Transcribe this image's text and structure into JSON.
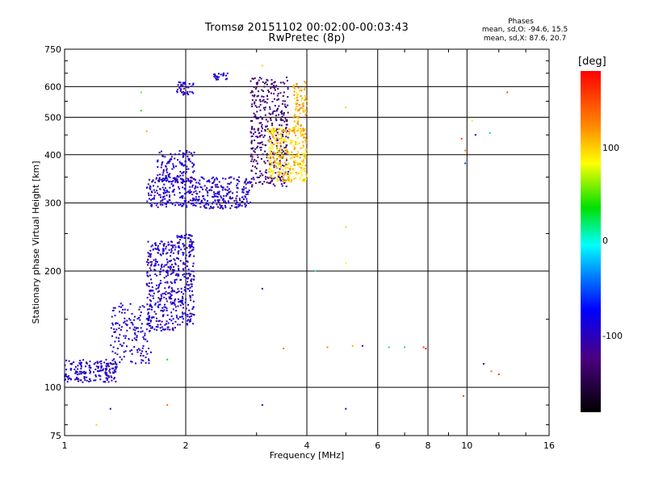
{
  "title_line1": "Tromsø 20151102 00:02:00-00:03:43",
  "title_line2": "RwPretec (8p)",
  "phases": {
    "heading": "Phases",
    "line_o": "mean, sd,O: -94.6, 15.5",
    "line_x": "mean, sd,X:  87.6, 20.7"
  },
  "colorbar": {
    "unit": "[deg]",
    "ticks": [
      "100",
      "0",
      "-100"
    ],
    "range": [
      -180,
      180
    ]
  },
  "chart_data": {
    "type": "scatter",
    "xlabel": "Frequency [MHz]",
    "ylabel": "Stationary phase Virtual Height [km]",
    "x_scale": "log",
    "y_scale": "log",
    "xlim": [
      1,
      16
    ],
    "ylim": [
      75,
      750
    ],
    "x_ticks": [
      "1",
      "2",
      "4",
      "6",
      "8",
      "10",
      "16"
    ],
    "y_ticks": [
      "75",
      "100",
      "200",
      "300",
      "400",
      "500",
      "600",
      "750"
    ],
    "grid": true,
    "color_by": "phase [deg]",
    "clusters": [
      {
        "freq": [
          1.0,
          1.35
        ],
        "height": [
          103,
          118
        ],
        "phase": -100,
        "count": 180
      },
      {
        "freq": [
          1.3,
          1.65
        ],
        "height": [
          115,
          165
        ],
        "phase": -100,
        "count": 160
      },
      {
        "freq": [
          1.6,
          1.9
        ],
        "height": [
          140,
          240
        ],
        "phase": -100,
        "count": 320
      },
      {
        "freq": [
          1.9,
          2.1
        ],
        "height": [
          145,
          250
        ],
        "phase": -100,
        "count": 200
      },
      {
        "freq": [
          1.6,
          2.9
        ],
        "height": [
          290,
          350
        ],
        "phase": -100,
        "count": 420
      },
      {
        "freq": [
          1.7,
          2.1
        ],
        "height": [
          340,
          410
        ],
        "phase": -100,
        "count": 120
      },
      {
        "freq": [
          2.9,
          3.6
        ],
        "height": [
          330,
          640
        ],
        "phase": -130,
        "count": 380
      },
      {
        "freq": [
          3.2,
          4.0
        ],
        "height": [
          340,
          470
        ],
        "phase": 100,
        "count": 320
      },
      {
        "freq": [
          3.7,
          4.0
        ],
        "height": [
          450,
          620
        ],
        "phase": 110,
        "count": 90
      },
      {
        "freq": [
          1.9,
          2.1
        ],
        "height": [
          570,
          620
        ],
        "phase": -100,
        "count": 40
      },
      {
        "freq": [
          2.35,
          2.55
        ],
        "height": [
          625,
          650
        ],
        "phase": -100,
        "count": 25
      }
    ],
    "isolated_points": [
      {
        "freq": 4.5,
        "height": 127,
        "phase": 120
      },
      {
        "freq": 5.2,
        "height": 128,
        "phase": 110
      },
      {
        "freq": 5.5,
        "height": 128,
        "phase": -110
      },
      {
        "freq": 6.4,
        "height": 127,
        "phase": 20
      },
      {
        "freq": 7.0,
        "height": 127,
        "phase": 20
      },
      {
        "freq": 7.8,
        "height": 127,
        "phase": 150
      },
      {
        "freq": 7.9,
        "height": 126,
        "phase": 170
      },
      {
        "freq": 9.8,
        "height": 95,
        "phase": 150
      },
      {
        "freq": 11.0,
        "height": 115,
        "phase": -100
      },
      {
        "freq": 11.5,
        "height": 110,
        "phase": 130
      },
      {
        "freq": 12.0,
        "height": 108,
        "phase": 160
      },
      {
        "freq": 12.6,
        "height": 580,
        "phase": 150
      },
      {
        "freq": 10.3,
        "height": 490,
        "phase": 90
      },
      {
        "freq": 10.5,
        "height": 450,
        "phase": -100
      },
      {
        "freq": 11.4,
        "height": 455,
        "phase": 20
      },
      {
        "freq": 9.7,
        "height": 440,
        "phase": 150
      },
      {
        "freq": 9.9,
        "height": 410,
        "phase": 120
      },
      {
        "freq": 9.9,
        "height": 380,
        "phase": -60
      },
      {
        "freq": 3.1,
        "height": 180,
        "phase": -110
      },
      {
        "freq": 3.1,
        "height": 90,
        "phase": -100
      },
      {
        "freq": 3.5,
        "height": 126,
        "phase": 130
      },
      {
        "freq": 4.2,
        "height": 200,
        "phase": 0
      },
      {
        "freq": 5.0,
        "height": 210,
        "phase": 90
      },
      {
        "freq": 5.0,
        "height": 88,
        "phase": -100
      },
      {
        "freq": 1.8,
        "height": 90,
        "phase": 130
      },
      {
        "freq": 1.8,
        "height": 118,
        "phase": 30
      },
      {
        "freq": 1.3,
        "height": 88,
        "phase": -110
      },
      {
        "freq": 1.2,
        "height": 80,
        "phase": 100
      },
      {
        "freq": 1.55,
        "height": 580,
        "phase": 60
      },
      {
        "freq": 1.55,
        "height": 520,
        "phase": 40
      },
      {
        "freq": 1.6,
        "height": 460,
        "phase": 110
      },
      {
        "freq": 5.0,
        "height": 530,
        "phase": 100
      },
      {
        "freq": 5.0,
        "height": 260,
        "phase": 100
      },
      {
        "freq": 3.1,
        "height": 680,
        "phase": 100
      }
    ]
  }
}
